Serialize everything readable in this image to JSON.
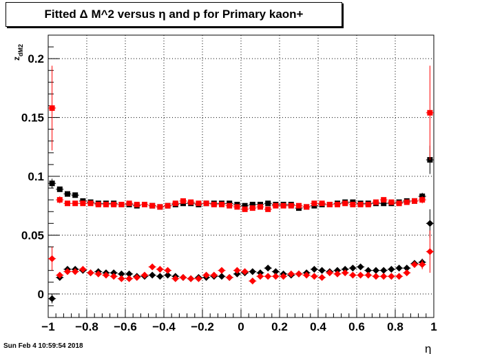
{
  "title": "Fitted Δ M^2 versus η and p for Primary kaon+",
  "timestamp": "Sun Feb  4 10:59:54 2018",
  "chart_data": {
    "type": "scatter",
    "xlabel": "η",
    "ylabel": "z",
    "ylabel_sub": "dM2",
    "xlim": [
      -1,
      1
    ],
    "ylim": [
      -0.02,
      0.22
    ],
    "xticks": [
      "−1",
      "−0.8",
      "−0.6",
      "−0.4",
      "−0.2",
      "0",
      "0.2",
      "0.4",
      "0.6",
      "0.8",
      "1"
    ],
    "yticks": [
      "0",
      "0.05",
      "0.1",
      "0.15",
      "0.2"
    ],
    "grid": true,
    "x": [
      -0.98,
      -0.94,
      -0.9,
      -0.86,
      -0.82,
      -0.78,
      -0.74,
      -0.7,
      -0.66,
      -0.62,
      -0.58,
      -0.54,
      -0.5,
      -0.46,
      -0.42,
      -0.38,
      -0.34,
      -0.3,
      -0.26,
      -0.22,
      -0.18,
      -0.14,
      -0.1,
      -0.06,
      -0.02,
      0.02,
      0.06,
      0.1,
      0.14,
      0.18,
      0.22,
      0.26,
      0.3,
      0.34,
      0.38,
      0.42,
      0.46,
      0.5,
      0.54,
      0.58,
      0.62,
      0.66,
      0.7,
      0.74,
      0.78,
      0.82,
      0.86,
      0.9,
      0.94,
      0.98
    ],
    "series": [
      {
        "marker": "square",
        "color": "#000000",
        "values": [
          0.094,
          0.089,
          0.085,
          0.084,
          0.079,
          0.078,
          0.077,
          0.077,
          0.077,
          0.076,
          0.076,
          0.075,
          0.076,
          0.075,
          0.074,
          0.075,
          0.076,
          0.077,
          0.077,
          0.076,
          0.077,
          0.077,
          0.077,
          0.077,
          0.076,
          0.075,
          0.076,
          0.076,
          0.077,
          0.076,
          0.076,
          0.076,
          0.073,
          0.074,
          0.075,
          0.076,
          0.076,
          0.077,
          0.078,
          0.078,
          0.077,
          0.077,
          0.077,
          0.077,
          0.077,
          0.078,
          0.079,
          0.079,
          0.083,
          0.114
        ],
        "errors": [
          0.004,
          0.002,
          0.002,
          0.002,
          0.002,
          0.002,
          0.002,
          0.002,
          0.002,
          0.002,
          0.002,
          0.002,
          0.002,
          0.002,
          0.002,
          0.002,
          0.002,
          0.002,
          0.002,
          0.002,
          0.002,
          0.002,
          0.002,
          0.002,
          0.002,
          0.002,
          0.002,
          0.002,
          0.002,
          0.002,
          0.002,
          0.002,
          0.002,
          0.002,
          0.002,
          0.002,
          0.002,
          0.002,
          0.002,
          0.002,
          0.002,
          0.002,
          0.002,
          0.002,
          0.002,
          0.002,
          0.002,
          0.002,
          0.003,
          0.012
        ]
      },
      {
        "marker": "square",
        "color": "#ff0000",
        "values": [
          0.158,
          0.08,
          0.077,
          0.077,
          0.077,
          0.077,
          0.076,
          0.076,
          0.076,
          0.076,
          0.077,
          0.076,
          0.076,
          0.075,
          0.074,
          0.075,
          0.077,
          0.079,
          0.078,
          0.077,
          0.077,
          0.076,
          0.076,
          0.075,
          0.074,
          0.072,
          0.073,
          0.074,
          0.072,
          0.075,
          0.075,
          0.075,
          0.075,
          0.074,
          0.077,
          0.077,
          0.076,
          0.076,
          0.077,
          0.076,
          0.076,
          0.076,
          0.078,
          0.08,
          0.078,
          0.077,
          0.078,
          0.079,
          0.08,
          0.154
        ],
        "errors": [
          0.036,
          0.003,
          0.002,
          0.002,
          0.002,
          0.002,
          0.002,
          0.002,
          0.002,
          0.002,
          0.002,
          0.002,
          0.002,
          0.002,
          0.002,
          0.002,
          0.002,
          0.002,
          0.002,
          0.002,
          0.002,
          0.002,
          0.002,
          0.002,
          0.002,
          0.002,
          0.002,
          0.002,
          0.002,
          0.002,
          0.002,
          0.002,
          0.002,
          0.002,
          0.002,
          0.002,
          0.002,
          0.002,
          0.002,
          0.002,
          0.002,
          0.002,
          0.002,
          0.002,
          0.002,
          0.002,
          0.002,
          0.002,
          0.003,
          0.04
        ]
      },
      {
        "marker": "diamond",
        "color": "#000000",
        "values": [
          -0.004,
          0.014,
          0.021,
          0.021,
          0.02,
          0.018,
          0.019,
          0.018,
          0.018,
          0.017,
          0.017,
          0.015,
          0.015,
          0.016,
          0.015,
          0.016,
          0.015,
          0.014,
          0.013,
          0.014,
          0.014,
          0.015,
          0.015,
          0.014,
          0.017,
          0.018,
          0.019,
          0.018,
          0.022,
          0.019,
          0.017,
          0.016,
          0.017,
          0.018,
          0.021,
          0.02,
          0.019,
          0.02,
          0.021,
          0.022,
          0.023,
          0.02,
          0.02,
          0.02,
          0.021,
          0.022,
          0.022,
          0.026,
          0.027,
          0.06
        ],
        "errors": [
          0.004,
          0.002,
          0.002,
          0.002,
          0.002,
          0.002,
          0.002,
          0.002,
          0.002,
          0.002,
          0.002,
          0.002,
          0.002,
          0.002,
          0.002,
          0.002,
          0.002,
          0.002,
          0.002,
          0.002,
          0.002,
          0.002,
          0.002,
          0.002,
          0.002,
          0.002,
          0.002,
          0.002,
          0.002,
          0.002,
          0.002,
          0.002,
          0.002,
          0.002,
          0.002,
          0.002,
          0.002,
          0.002,
          0.002,
          0.002,
          0.002,
          0.002,
          0.002,
          0.002,
          0.002,
          0.002,
          0.002,
          0.002,
          0.003,
          0.012
        ]
      },
      {
        "marker": "diamond",
        "color": "#ff0000",
        "values": [
          0.03,
          0.016,
          0.019,
          0.019,
          0.021,
          0.018,
          0.017,
          0.016,
          0.015,
          0.013,
          0.013,
          0.014,
          0.016,
          0.023,
          0.021,
          0.02,
          0.013,
          0.014,
          0.013,
          0.013,
          0.016,
          0.016,
          0.02,
          0.014,
          0.02,
          0.019,
          0.011,
          0.015,
          0.015,
          0.015,
          0.015,
          0.017,
          0.017,
          0.016,
          0.015,
          0.014,
          0.018,
          0.017,
          0.018,
          0.016,
          0.016,
          0.016,
          0.015,
          0.015,
          0.015,
          0.015,
          0.018,
          0.025,
          0.025,
          0.036
        ],
        "errors": [
          0.01,
          0.002,
          0.002,
          0.002,
          0.002,
          0.002,
          0.002,
          0.002,
          0.002,
          0.002,
          0.002,
          0.002,
          0.002,
          0.002,
          0.002,
          0.002,
          0.002,
          0.002,
          0.002,
          0.002,
          0.002,
          0.002,
          0.002,
          0.002,
          0.002,
          0.002,
          0.002,
          0.002,
          0.002,
          0.002,
          0.002,
          0.002,
          0.002,
          0.002,
          0.002,
          0.002,
          0.002,
          0.002,
          0.002,
          0.002,
          0.002,
          0.002,
          0.002,
          0.002,
          0.002,
          0.002,
          0.002,
          0.002,
          0.004,
          0.018
        ]
      }
    ]
  }
}
